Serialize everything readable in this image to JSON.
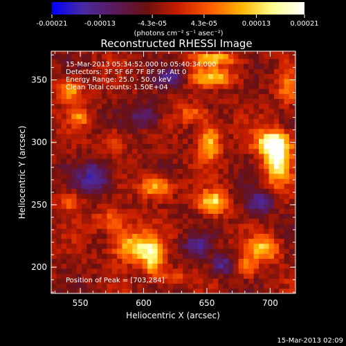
{
  "colorbar": {
    "tick_labels": [
      "-0.00021",
      "-0.00013",
      "-4.3e-05",
      "4.3e-05",
      "0.00013",
      "0.00021"
    ],
    "tick_values": [
      -0.00021,
      -0.00013,
      -4.3e-05,
      4.3e-05,
      0.00013,
      0.00021
    ],
    "range": [
      -0.00021,
      0.00021
    ],
    "units_label": "(photons cm⁻² s⁻¹ asec⁻²)",
    "colors": [
      "#0000ff",
      "#4a2aa0",
      "#5a1a5a",
      "#6a1010",
      "#c81e00",
      "#ff5a00",
      "#ffb400",
      "#ffff90",
      "#ffffff"
    ]
  },
  "chart_data": {
    "type": "heatmap",
    "title": "Reconstructed RHESSI Image",
    "xlabel": "Heliocentric X (arcsec)",
    "ylabel": "Heliocentric Y (arcsec)",
    "xlim": [
      527,
      720
    ],
    "ylim": [
      179,
      373
    ],
    "x_ticks": [
      550,
      600,
      650,
      700
    ],
    "y_ticks": [
      200,
      250,
      300,
      350
    ],
    "annotations": [
      "15-Mar-2013 05:34:52.000 to 05:40:34.000",
      "Detectors: 3F 5F 6F 7F 8F 9F, Att 0",
      "Energy Range: 25.0 - 50.0 keV",
      "Clean     Total counts: 1.50E+04"
    ],
    "peak_label": "Position of Peak = [703,284]",
    "blobs": [
      {
        "x": 703,
        "y": 284,
        "intensity": 1.0,
        "rx": 10,
        "ry": 18
      },
      {
        "x": 700,
        "y": 298,
        "intensity": 0.9,
        "rx": 14,
        "ry": 10
      },
      {
        "x": 650,
        "y": 298,
        "intensity": 0.8,
        "rx": 8,
        "ry": 14
      },
      {
        "x": 608,
        "y": 263,
        "intensity": 0.75,
        "rx": 12,
        "ry": 9
      },
      {
        "x": 653,
        "y": 250,
        "intensity": 0.85,
        "rx": 11,
        "ry": 9
      },
      {
        "x": 590,
        "y": 215,
        "intensity": 0.8,
        "rx": 16,
        "ry": 12
      },
      {
        "x": 605,
        "y": 205,
        "intensity": 0.75,
        "rx": 8,
        "ry": 14
      },
      {
        "x": 653,
        "y": 350,
        "intensity": 0.7,
        "rx": 18,
        "ry": 7
      },
      {
        "x": 655,
        "y": 365,
        "intensity": 0.65,
        "rx": 20,
        "ry": 5
      },
      {
        "x": 540,
        "y": 340,
        "intensity": 0.6,
        "rx": 10,
        "ry": 10
      },
      {
        "x": 548,
        "y": 318,
        "intensity": 0.5,
        "rx": 8,
        "ry": 6
      },
      {
        "x": 693,
        "y": 213,
        "intensity": 0.7,
        "rx": 12,
        "ry": 10
      },
      {
        "x": 680,
        "y": 198,
        "intensity": 0.5,
        "rx": 8,
        "ry": 8
      },
      {
        "x": 540,
        "y": 250,
        "intensity": 0.4,
        "rx": 10,
        "ry": 8
      },
      {
        "x": 574,
        "y": 235,
        "intensity": 0.5,
        "rx": 14,
        "ry": 8
      },
      {
        "x": 637,
        "y": 321,
        "intensity": 0.45,
        "rx": 12,
        "ry": 8
      },
      {
        "x": 712,
        "y": 340,
        "intensity": 0.5,
        "rx": 8,
        "ry": 12
      },
      {
        "x": 575,
        "y": 300,
        "intensity": 0.35,
        "rx": 10,
        "ry": 8
      },
      {
        "x": 620,
        "y": 190,
        "intensity": 0.4,
        "rx": 10,
        "ry": 6
      },
      {
        "x": 640,
        "y": 215,
        "intensity": -0.5,
        "rx": 10,
        "ry": 8
      },
      {
        "x": 560,
        "y": 270,
        "intensity": -0.6,
        "rx": 14,
        "ry": 12
      },
      {
        "x": 600,
        "y": 320,
        "intensity": -0.5,
        "rx": 12,
        "ry": 10
      },
      {
        "x": 690,
        "y": 250,
        "intensity": -0.55,
        "rx": 10,
        "ry": 10
      },
      {
        "x": 620,
        "y": 350,
        "intensity": -0.45,
        "rx": 12,
        "ry": 8
      },
      {
        "x": 660,
        "y": 200,
        "intensity": -0.5,
        "rx": 8,
        "ry": 8
      }
    ]
  },
  "footer": {
    "timestamp": "15-Mar-2013 02:09"
  }
}
